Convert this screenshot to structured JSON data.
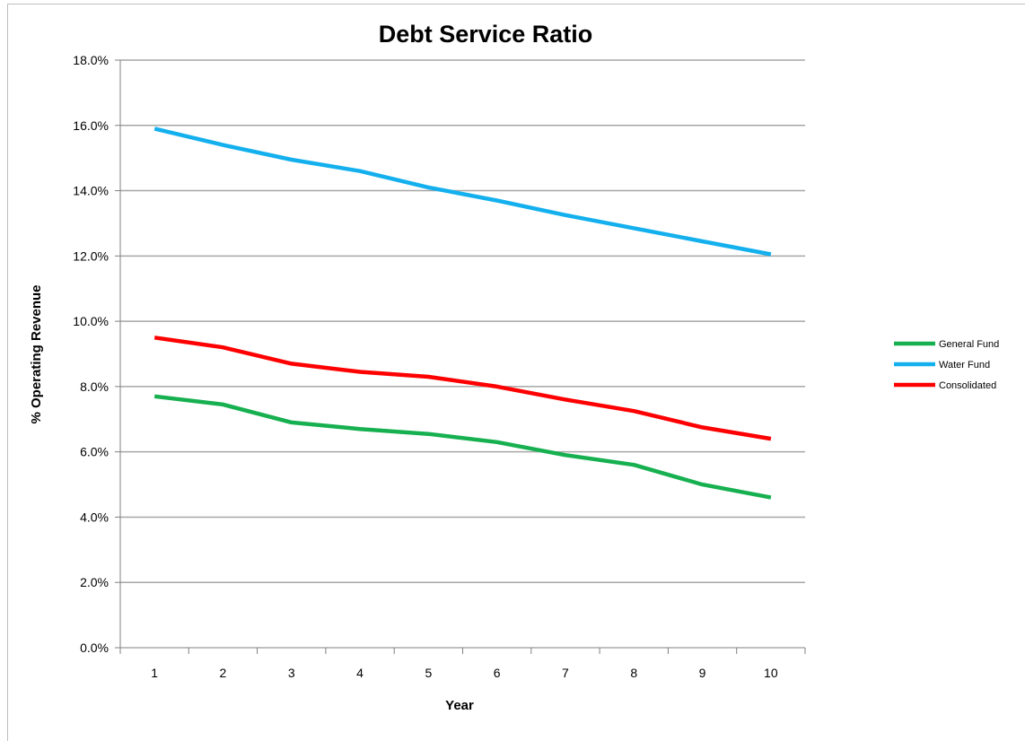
{
  "chart_data": {
    "type": "line",
    "title": "Debt Service Ratio",
    "xlabel": "Year",
    "ylabel": "% Operating Revenue",
    "categories": [
      "1",
      "2",
      "3",
      "4",
      "5",
      "6",
      "7",
      "8",
      "9",
      "10"
    ],
    "y_tick_labels": [
      "0.0%",
      "2.0%",
      "4.0%",
      "6.0%",
      "8.0%",
      "10.0%",
      "12.0%",
      "14.0%",
      "16.0%",
      "18.0%"
    ],
    "ylim": [
      0,
      18
    ],
    "grid": "horizontal",
    "legend_position": "right",
    "series": [
      {
        "name": "General Fund",
        "color": "#17b050",
        "values": [
          7.7,
          7.45,
          6.9,
          6.7,
          6.55,
          6.3,
          5.9,
          5.6,
          5.0,
          4.6
        ]
      },
      {
        "name": "Water Fund",
        "color": "#14b0ee",
        "values": [
          15.9,
          15.4,
          14.95,
          14.6,
          14.1,
          13.7,
          13.25,
          12.85,
          12.45,
          12.05
        ]
      },
      {
        "name": "Consolidated",
        "color": "#ff0000",
        "values": [
          9.5,
          9.2,
          8.7,
          8.45,
          8.3,
          8.0,
          7.6,
          7.25,
          6.75,
          6.4
        ]
      }
    ]
  }
}
